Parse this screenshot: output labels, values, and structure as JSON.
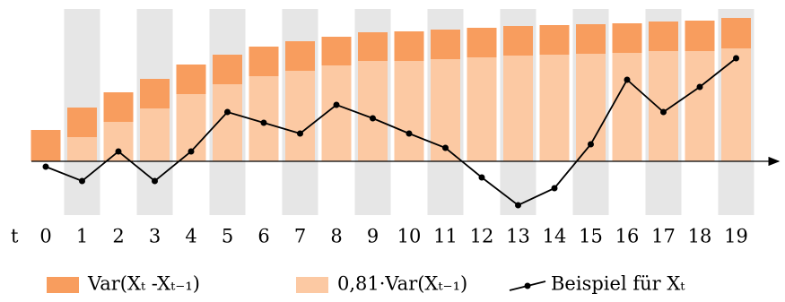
{
  "chart_data": {
    "type": "bar",
    "x_label": "t",
    "categories": [
      "0",
      "1",
      "2",
      "3",
      "4",
      "5",
      "6",
      "7",
      "8",
      "9",
      "10",
      "11",
      "12",
      "13",
      "14",
      "15",
      "16",
      "17",
      "18",
      "19"
    ],
    "stacked": true,
    "ylim": [
      -6,
      17
    ],
    "series": [
      {
        "name": "0,81·Var(Xₜ₋₁)",
        "color": "#fcc9a3",
        "values": [
          0,
          2.7,
          4.4,
          5.9,
          7.5,
          8.6,
          9.5,
          10.1,
          10.7,
          11.2,
          11.2,
          11.4,
          11.6,
          11.8,
          11.9,
          12.0,
          12.1,
          12.3,
          12.3,
          12.6
        ]
      },
      {
        "name": "Var(Xₜ -Xₜ₋₁)",
        "color": "#f89d5e",
        "values": [
          3.5,
          3.3,
          3.3,
          3.3,
          3.3,
          3.3,
          3.3,
          3.3,
          3.2,
          3.2,
          3.3,
          3.3,
          3.3,
          3.3,
          3.3,
          3.3,
          3.3,
          3.3,
          3.4,
          3.4
        ]
      },
      {
        "name": "Beispiel für Xₜ",
        "type": "line",
        "color": "#000000",
        "values": [
          -0.6,
          -2.2,
          1.1,
          -2.2,
          1.1,
          5.5,
          4.3,
          3.1,
          6.3,
          4.8,
          3.1,
          1.5,
          -1.8,
          -4.9,
          -3.0,
          1.9,
          9.1,
          5.5,
          8.3,
          11.5
        ]
      }
    ]
  }
}
